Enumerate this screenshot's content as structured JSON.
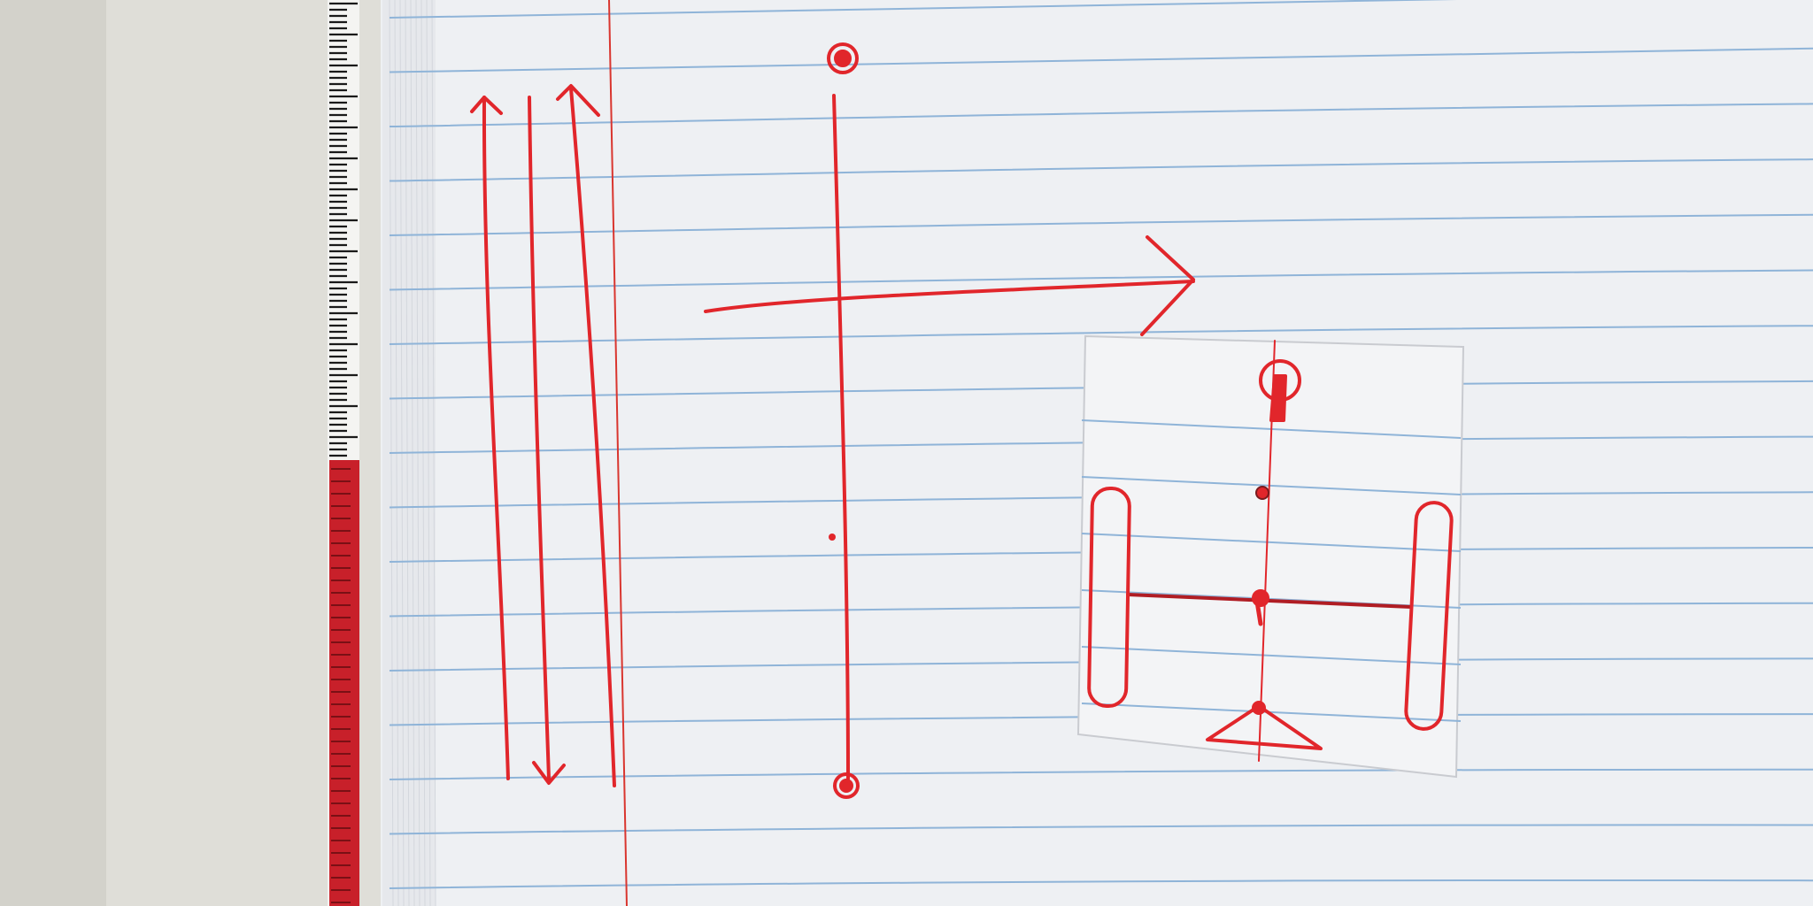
{
  "scene": {
    "colors": {
      "table": "#dddcd5",
      "paper": "#f1f2f4",
      "rule_line": "#8fb4d8",
      "margin_line": "#d9362f",
      "ink": "#e1262b",
      "ruler_black": "#1a1a1a",
      "ruler_red": "#c8202a"
    },
    "objects": [
      "ruler",
      "lined-notebook-paper",
      "vertical-arrows",
      "vertical-axis-line",
      "horizontal-arrow",
      "cut-paper-card",
      "card-sketch"
    ]
  }
}
